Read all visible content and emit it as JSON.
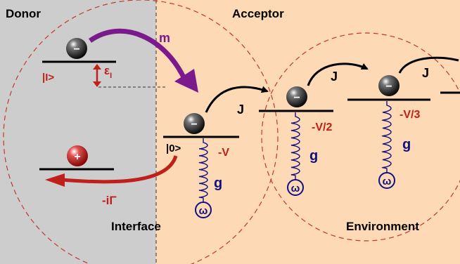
{
  "regions": {
    "donor_label": "Donor",
    "acceptor_label": "Acceptor",
    "interface_label": "Interface",
    "environment_label": "Environment"
  },
  "levels": {
    "donor_excited_state": "|I>",
    "epsilon_main": "ε",
    "epsilon_sub": "I",
    "interface_state": "|0>",
    "interface_energy": "-V",
    "env_level_1_energy": "-V/2",
    "env_level_2_energy": "-V/3"
  },
  "couplings": {
    "donor_to_interface": "m",
    "hop_1": "J",
    "hop_2": "J",
    "hop_3": "J",
    "recombination": "-iΓ",
    "vibronic_1": "g",
    "vibronic_2": "g",
    "vibronic_3": "g"
  },
  "modes": {
    "omega_1": "ω",
    "omega_2": "ω",
    "omega_3": "ω"
  },
  "particles": {
    "electron_sign": "−",
    "hole_sign": "+"
  },
  "colors": {
    "donor_bg": "#cdcdcd",
    "acceptor_bg": "#fdd9b5",
    "dashed_circle": "#c0392b",
    "red_text": "#c0201a",
    "navy": "#101080",
    "purple": "#7a1a8c"
  }
}
